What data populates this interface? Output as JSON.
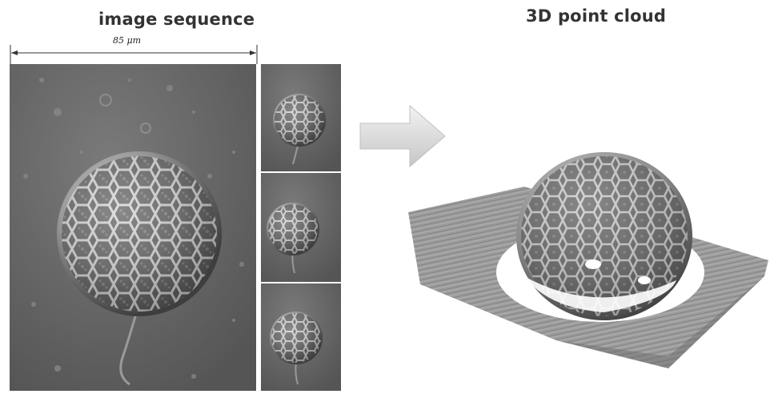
{
  "titles": {
    "left": "image sequence",
    "right": "3D point cloud"
  },
  "scale": {
    "label": "85 μm"
  },
  "colors": {
    "title": "#333333",
    "sem_background": "#6a6a6a",
    "arrow": "#d8d8d8",
    "cloud_base": "#9a9a9a"
  }
}
